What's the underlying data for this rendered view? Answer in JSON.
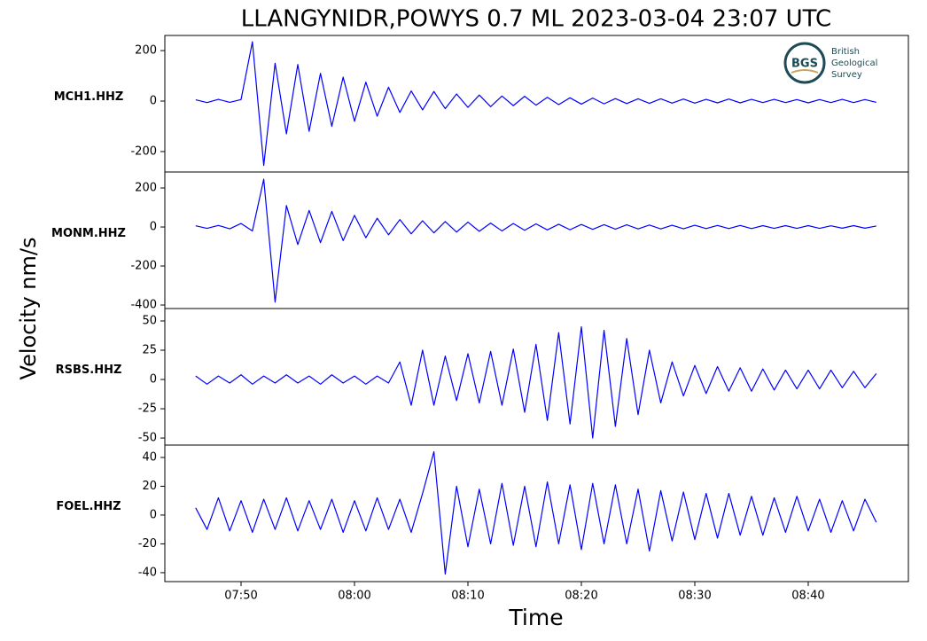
{
  "figure": {
    "title": "LLANGYNIDR,POWYS 0.7 ML   2023-03-04 23:07 UTC",
    "ylabel": "Velocity nm/s",
    "xlabel": "Time"
  },
  "logo": {
    "initials": "BGS",
    "lines": [
      "British",
      "Geological",
      "Survey"
    ]
  },
  "chart_data": [
    {
      "type": "line",
      "label": "MCH1.HHZ",
      "color": "#0000ff",
      "xlim": [
        43.28,
        108.83
      ],
      "ylim": [
        -281,
        260
      ],
      "yticks": [
        -200,
        0,
        200
      ],
      "x": [
        46,
        47,
        48,
        49,
        50,
        51,
        52,
        53,
        54,
        55,
        56,
        57,
        58,
        59,
        60,
        61,
        62,
        63,
        64,
        65,
        66,
        67,
        68,
        69,
        70,
        71,
        72,
        73,
        74,
        75,
        76,
        77,
        78,
        79,
        80,
        81,
        82,
        83,
        84,
        85,
        86,
        87,
        88,
        89,
        90,
        91,
        92,
        93,
        94,
        95,
        96,
        97,
        98,
        99,
        100,
        101,
        102,
        103,
        104,
        105,
        106
      ],
      "values": [
        5,
        -6,
        7,
        -5,
        6,
        235,
        -255,
        150,
        -130,
        145,
        -120,
        110,
        -100,
        95,
        -80,
        75,
        -60,
        55,
        -45,
        40,
        -35,
        38,
        -30,
        28,
        -25,
        24,
        -22,
        20,
        -18,
        19,
        -16,
        15,
        -14,
        13,
        -12,
        12,
        -11,
        10,
        -10,
        9,
        -9,
        9,
        -8,
        8,
        -8,
        7,
        -7,
        8,
        -7,
        7,
        -6,
        7,
        -6,
        6,
        -7,
        6,
        -6,
        7,
        -6,
        6,
        -5
      ]
    },
    {
      "type": "line",
      "label": "MONM.HHZ",
      "color": "#0000ff",
      "xlim": [
        43.28,
        108.83
      ],
      "ylim": [
        -418,
        282
      ],
      "yticks": [
        -400,
        -200,
        0,
        200
      ],
      "x": [
        46,
        47,
        48,
        49,
        50,
        51,
        52,
        53,
        54,
        55,
        56,
        57,
        58,
        59,
        60,
        61,
        62,
        63,
        64,
        65,
        66,
        67,
        68,
        69,
        70,
        71,
        72,
        73,
        74,
        75,
        76,
        77,
        78,
        79,
        80,
        81,
        82,
        83,
        84,
        85,
        86,
        87,
        88,
        89,
        90,
        91,
        92,
        93,
        94,
        95,
        96,
        97,
        98,
        99,
        100,
        101,
        102,
        103,
        104,
        105,
        106
      ],
      "values": [
        6,
        -7,
        8,
        -9,
        18,
        -20,
        245,
        -385,
        110,
        -90,
        85,
        -80,
        80,
        -70,
        60,
        -55,
        45,
        -40,
        38,
        -35,
        32,
        -30,
        28,
        -26,
        25,
        -22,
        20,
        -20,
        18,
        -17,
        16,
        -15,
        14,
        -14,
        13,
        -12,
        12,
        -11,
        11,
        -10,
        10,
        -10,
        9,
        -9,
        9,
        -8,
        8,
        -8,
        8,
        -8,
        7,
        -7,
        7,
        -7,
        7,
        -7,
        6,
        -6,
        7,
        -6,
        5
      ]
    },
    {
      "type": "line",
      "label": "RSBS.HHZ",
      "color": "#0000ff",
      "xlim": [
        43.28,
        108.83
      ],
      "ylim": [
        -56,
        60.6
      ],
      "yticks": [
        -50,
        -25,
        0,
        25,
        50
      ],
      "x": [
        46,
        47,
        48,
        49,
        50,
        51,
        52,
        53,
        54,
        55,
        56,
        57,
        58,
        59,
        60,
        61,
        62,
        63,
        64,
        65,
        66,
        67,
        68,
        69,
        70,
        71,
        72,
        73,
        74,
        75,
        76,
        77,
        78,
        79,
        80,
        81,
        82,
        83,
        84,
        85,
        86,
        87,
        88,
        89,
        90,
        91,
        92,
        93,
        94,
        95,
        96,
        97,
        98,
        99,
        100,
        101,
        102,
        103,
        104,
        105,
        106
      ],
      "values": [
        3,
        -4,
        3,
        -3,
        4,
        -4,
        3,
        -3,
        4,
        -3,
        3,
        -4,
        4,
        -3,
        3,
        -4,
        3,
        -3,
        15,
        -22,
        25,
        -22,
        20,
        -18,
        22,
        -20,
        24,
        -22,
        26,
        -28,
        30,
        -35,
        40,
        -38,
        45,
        -50,
        42,
        -40,
        35,
        -30,
        25,
        -20,
        15,
        -14,
        12,
        -12,
        11,
        -10,
        10,
        -10,
        9,
        -9,
        8,
        -8,
        8,
        -8,
        8,
        -7,
        7,
        -7,
        5
      ]
    },
    {
      "type": "line",
      "label": "FOEL.HHZ",
      "color": "#0000ff",
      "xlim": [
        43.28,
        108.83
      ],
      "ylim": [
        -46.2,
        48.6
      ],
      "yticks": [
        -40,
        -20,
        0,
        20,
        40
      ],
      "x": [
        46,
        47,
        48,
        49,
        50,
        51,
        52,
        53,
        54,
        55,
        56,
        57,
        58,
        59,
        60,
        61,
        62,
        63,
        64,
        65,
        66,
        67,
        68,
        69,
        70,
        71,
        72,
        73,
        74,
        75,
        76,
        77,
        78,
        79,
        80,
        81,
        82,
        83,
        84,
        85,
        86,
        87,
        88,
        89,
        90,
        91,
        92,
        93,
        94,
        95,
        96,
        97,
        98,
        99,
        100,
        101,
        102,
        103,
        104,
        105,
        106
      ],
      "values": [
        5,
        -10,
        12,
        -11,
        10,
        -12,
        11,
        -10,
        12,
        -11,
        10,
        -10,
        11,
        -12,
        10,
        -11,
        12,
        -10,
        11,
        -12,
        15,
        44,
        -41,
        20,
        -22,
        18,
        -20,
        22,
        -21,
        20,
        -22,
        23,
        -20,
        21,
        -24,
        22,
        -20,
        21,
        -20,
        18,
        -25,
        17,
        -18,
        16,
        -17,
        15,
        -16,
        15,
        -14,
        13,
        -14,
        12,
        -12,
        13,
        -11,
        11,
        -12,
        10,
        -11,
        11,
        -5
      ],
      "xticks": [
        {
          "value": 50,
          "label": "07:50"
        },
        {
          "value": 60,
          "label": "08:00"
        },
        {
          "value": 70,
          "label": "08:10"
        },
        {
          "value": 80,
          "label": "08:20"
        },
        {
          "value": 90,
          "label": "08:30"
        },
        {
          "value": 100,
          "label": "08:40"
        }
      ]
    }
  ]
}
